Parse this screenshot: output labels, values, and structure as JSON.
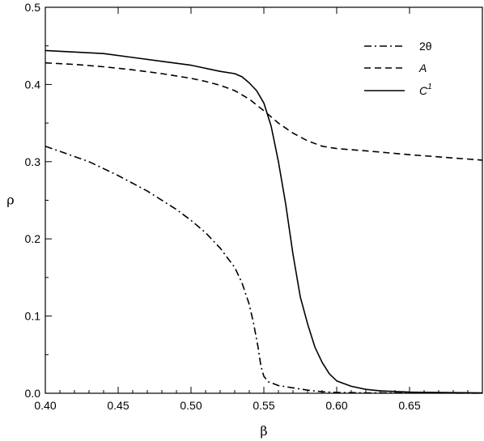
{
  "chart_data": {
    "type": "line",
    "xlabel": "β",
    "ylabel": "ρ",
    "xlim": [
      0.4,
      0.7
    ],
    "ylim": [
      0.0,
      0.5
    ],
    "x_ticks": [
      "0.40",
      "0.45",
      "0.50",
      "0.55",
      "0.60",
      "0.65"
    ],
    "y_ticks": [
      "0.0",
      "0.1",
      "0.2",
      "0.3",
      "0.4",
      "0.5"
    ],
    "legend_position": "top-right",
    "grid": false,
    "series": [
      {
        "name": "2θ",
        "label_main": "2θ",
        "label_sup": "",
        "italic": false,
        "style": "dashdot",
        "x": [
          0.4,
          0.43,
          0.45,
          0.47,
          0.49,
          0.5,
          0.51,
          0.52,
          0.53,
          0.535,
          0.54,
          0.543,
          0.546,
          0.548,
          0.55,
          0.553,
          0.56,
          0.57,
          0.58,
          0.59,
          0.6,
          0.62,
          0.65,
          0.7
        ],
        "y": [
          0.32,
          0.3,
          0.282,
          0.262,
          0.238,
          0.224,
          0.208,
          0.188,
          0.163,
          0.143,
          0.115,
          0.09,
          0.06,
          0.035,
          0.022,
          0.015,
          0.01,
          0.007,
          0.004,
          0.002,
          0.001,
          0.0005,
          0.0003,
          0.0002
        ]
      },
      {
        "name": "A",
        "label_main": "A",
        "label_sup": "",
        "italic": true,
        "style": "dashed",
        "x": [
          0.4,
          0.42,
          0.44,
          0.46,
          0.48,
          0.5,
          0.51,
          0.52,
          0.53,
          0.54,
          0.55,
          0.56,
          0.57,
          0.58,
          0.59,
          0.6,
          0.62,
          0.65,
          0.7
        ],
        "y": [
          0.428,
          0.426,
          0.423,
          0.419,
          0.414,
          0.408,
          0.404,
          0.399,
          0.392,
          0.381,
          0.366,
          0.35,
          0.337,
          0.327,
          0.32,
          0.317,
          0.314,
          0.309,
          0.302
        ]
      },
      {
        "name": "C1",
        "label_main": "C",
        "label_sup": "1",
        "italic": true,
        "style": "solid",
        "x": [
          0.4,
          0.42,
          0.44,
          0.46,
          0.48,
          0.5,
          0.51,
          0.52,
          0.53,
          0.535,
          0.54,
          0.545,
          0.55,
          0.555,
          0.56,
          0.565,
          0.57,
          0.575,
          0.58,
          0.585,
          0.59,
          0.595,
          0.6,
          0.61,
          0.62,
          0.63,
          0.65,
          0.7
        ],
        "y": [
          0.444,
          0.442,
          0.44,
          0.435,
          0.43,
          0.425,
          0.421,
          0.417,
          0.414,
          0.41,
          0.402,
          0.392,
          0.376,
          0.346,
          0.3,
          0.245,
          0.18,
          0.125,
          0.09,
          0.06,
          0.04,
          0.025,
          0.016,
          0.009,
          0.005,
          0.003,
          0.0015,
          0.0005
        ]
      }
    ]
  }
}
